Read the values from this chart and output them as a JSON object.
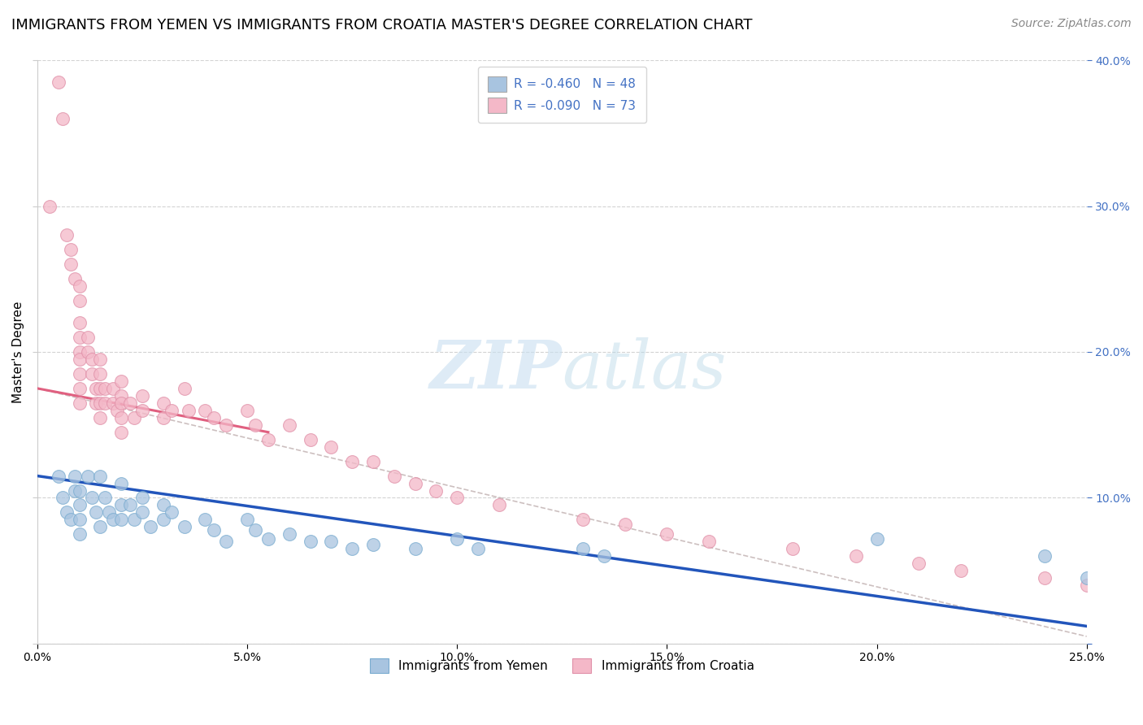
{
  "title": "IMMIGRANTS FROM YEMEN VS IMMIGRANTS FROM CROATIA MASTER'S DEGREE CORRELATION CHART",
  "source": "Source: ZipAtlas.com",
  "ylabel": "Master's Degree",
  "legend1_label": "Immigrants from Yemen",
  "legend2_label": "Immigrants from Croatia",
  "legend1_color": "#a8c4e0",
  "legend2_color": "#f4b8c8",
  "legend1_edge": "#7aacd0",
  "legend2_edge": "#e090a8",
  "R1": -0.46,
  "N1": 48,
  "R2": -0.09,
  "N2": 73,
  "stat_color": "#4472c4",
  "xlim": [
    0.0,
    0.25
  ],
  "ylim": [
    0.0,
    0.4
  ],
  "xticks": [
    0.0,
    0.05,
    0.1,
    0.15,
    0.2,
    0.25
  ],
  "yticks": [
    0.0,
    0.1,
    0.2,
    0.3,
    0.4
  ],
  "xtick_labels": [
    "0.0%",
    "5.0%",
    "10.0%",
    "15.0%",
    "20.0%",
    "25.0%"
  ],
  "right_ytick_labels": [
    "",
    "10.0%",
    "20.0%",
    "30.0%",
    "40.0%"
  ],
  "blue_scatter_x": [
    0.005,
    0.006,
    0.007,
    0.008,
    0.009,
    0.009,
    0.01,
    0.01,
    0.01,
    0.01,
    0.012,
    0.013,
    0.014,
    0.015,
    0.015,
    0.016,
    0.017,
    0.018,
    0.02,
    0.02,
    0.02,
    0.022,
    0.023,
    0.025,
    0.025,
    0.027,
    0.03,
    0.03,
    0.032,
    0.035,
    0.04,
    0.042,
    0.045,
    0.05,
    0.052,
    0.055,
    0.06,
    0.065,
    0.07,
    0.075,
    0.08,
    0.09,
    0.1,
    0.105,
    0.13,
    0.135,
    0.2,
    0.24,
    0.25
  ],
  "blue_scatter_y": [
    0.115,
    0.1,
    0.09,
    0.085,
    0.115,
    0.105,
    0.105,
    0.095,
    0.085,
    0.075,
    0.115,
    0.1,
    0.09,
    0.115,
    0.08,
    0.1,
    0.09,
    0.085,
    0.11,
    0.095,
    0.085,
    0.095,
    0.085,
    0.1,
    0.09,
    0.08,
    0.095,
    0.085,
    0.09,
    0.08,
    0.085,
    0.078,
    0.07,
    0.085,
    0.078,
    0.072,
    0.075,
    0.07,
    0.07,
    0.065,
    0.068,
    0.065,
    0.072,
    0.065,
    0.065,
    0.06,
    0.072,
    0.06,
    0.045
  ],
  "pink_scatter_x": [
    0.003,
    0.005,
    0.006,
    0.007,
    0.008,
    0.008,
    0.009,
    0.01,
    0.01,
    0.01,
    0.01,
    0.01,
    0.01,
    0.01,
    0.01,
    0.01,
    0.012,
    0.012,
    0.013,
    0.013,
    0.014,
    0.014,
    0.015,
    0.015,
    0.015,
    0.015,
    0.015,
    0.016,
    0.016,
    0.018,
    0.018,
    0.019,
    0.02,
    0.02,
    0.02,
    0.02,
    0.02,
    0.022,
    0.023,
    0.025,
    0.025,
    0.03,
    0.03,
    0.032,
    0.035,
    0.036,
    0.04,
    0.042,
    0.045,
    0.05,
    0.052,
    0.055,
    0.06,
    0.065,
    0.07,
    0.075,
    0.08,
    0.085,
    0.09,
    0.095,
    0.1,
    0.11,
    0.13,
    0.14,
    0.15,
    0.16,
    0.18,
    0.195,
    0.21,
    0.22,
    0.24,
    0.25
  ],
  "pink_scatter_y": [
    0.3,
    0.385,
    0.36,
    0.28,
    0.27,
    0.26,
    0.25,
    0.245,
    0.235,
    0.22,
    0.21,
    0.2,
    0.195,
    0.185,
    0.175,
    0.165,
    0.21,
    0.2,
    0.195,
    0.185,
    0.175,
    0.165,
    0.195,
    0.185,
    0.175,
    0.165,
    0.155,
    0.175,
    0.165,
    0.175,
    0.165,
    0.16,
    0.18,
    0.17,
    0.165,
    0.155,
    0.145,
    0.165,
    0.155,
    0.17,
    0.16,
    0.165,
    0.155,
    0.16,
    0.175,
    0.16,
    0.16,
    0.155,
    0.15,
    0.16,
    0.15,
    0.14,
    0.15,
    0.14,
    0.135,
    0.125,
    0.125,
    0.115,
    0.11,
    0.105,
    0.1,
    0.095,
    0.085,
    0.082,
    0.075,
    0.07,
    0.065,
    0.06,
    0.055,
    0.05,
    0.045,
    0.04
  ],
  "blue_line_x": [
    0.0,
    0.25
  ],
  "blue_line_y": [
    0.115,
    0.012
  ],
  "pink_line_x": [
    0.0,
    0.055
  ],
  "pink_line_y": [
    0.175,
    0.145
  ],
  "gray_line_x": [
    0.0,
    0.25
  ],
  "gray_line_y": [
    0.175,
    0.005
  ],
  "title_fontsize": 13,
  "axis_label_fontsize": 11,
  "tick_fontsize": 10,
  "legend_fontsize": 11,
  "source_fontsize": 10
}
